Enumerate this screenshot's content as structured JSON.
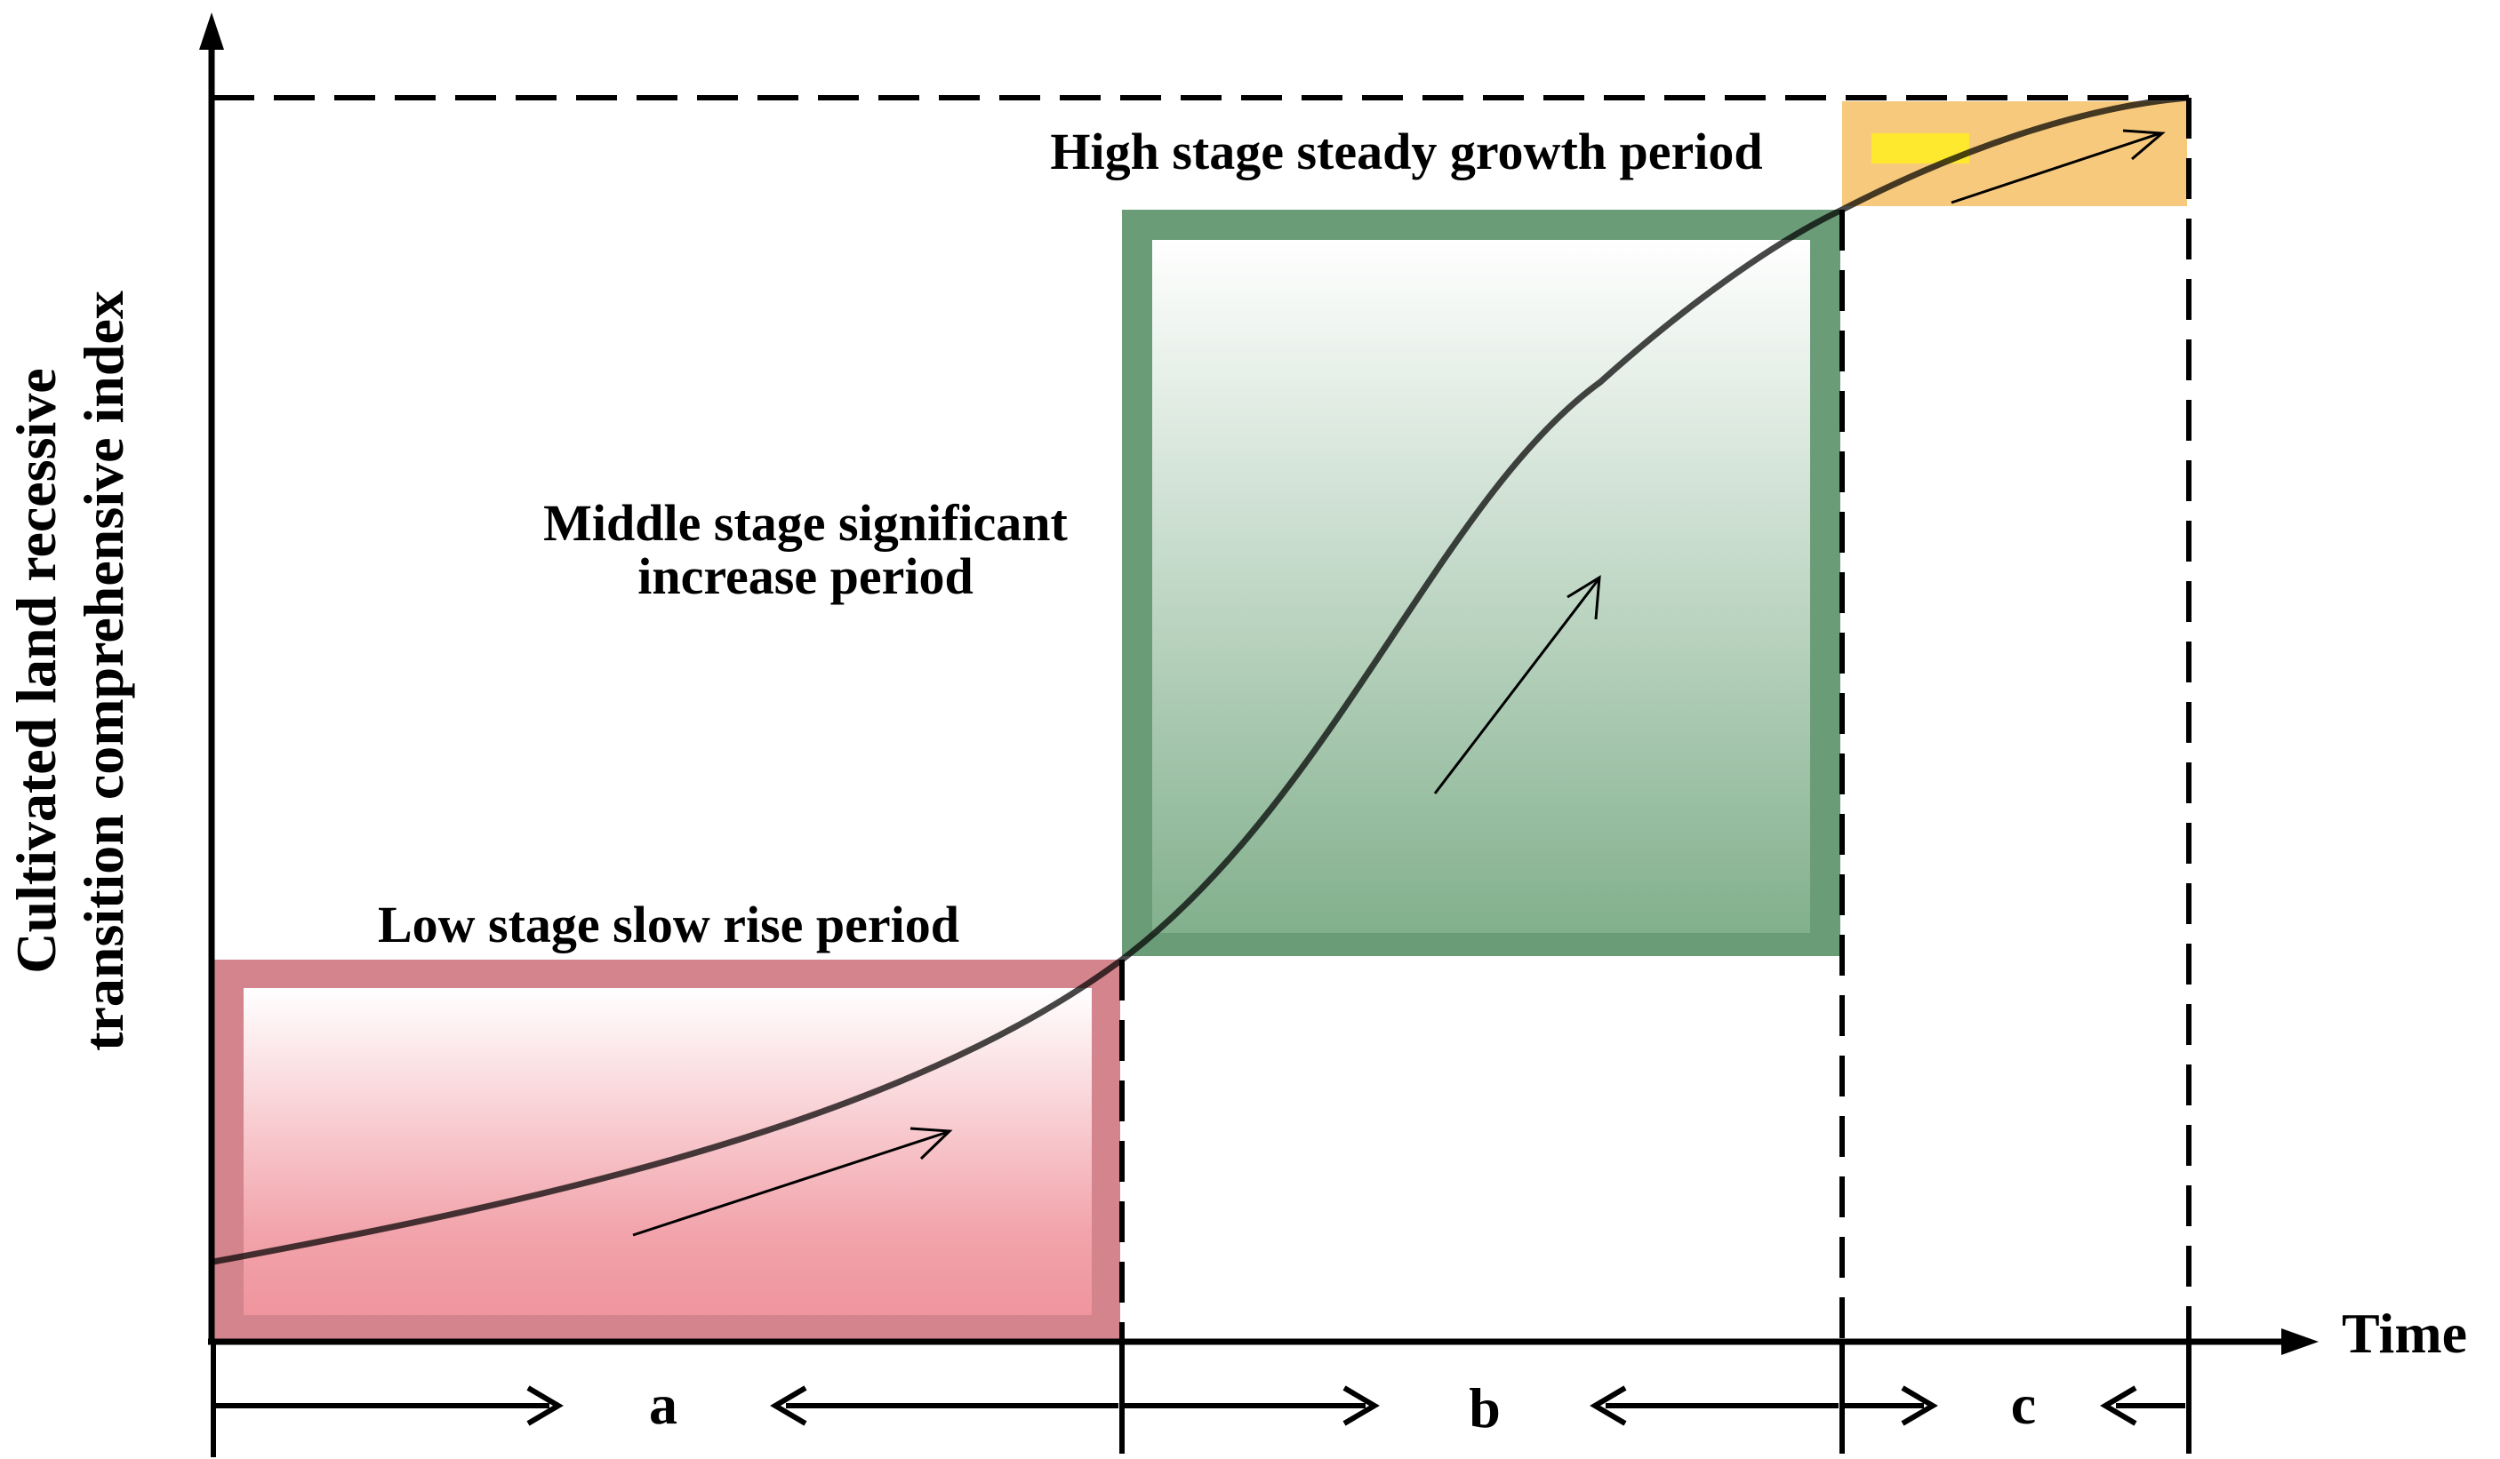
{
  "axes": {
    "y_label_line1": "Cultivated land recessive",
    "y_label_line2": "transition comprehensive index",
    "x_label": "Time"
  },
  "stages": {
    "low": {
      "title": "Low stage slow rise period",
      "segment": "a",
      "color": "#d9878f"
    },
    "middle": {
      "title_line1": "Middle stage significant",
      "title_line2": "increase period",
      "segment": "b",
      "color": "#6b9c78"
    },
    "high": {
      "title": "High stage steady growth period",
      "segment": "c",
      "color": "#f6c87a"
    }
  }
}
